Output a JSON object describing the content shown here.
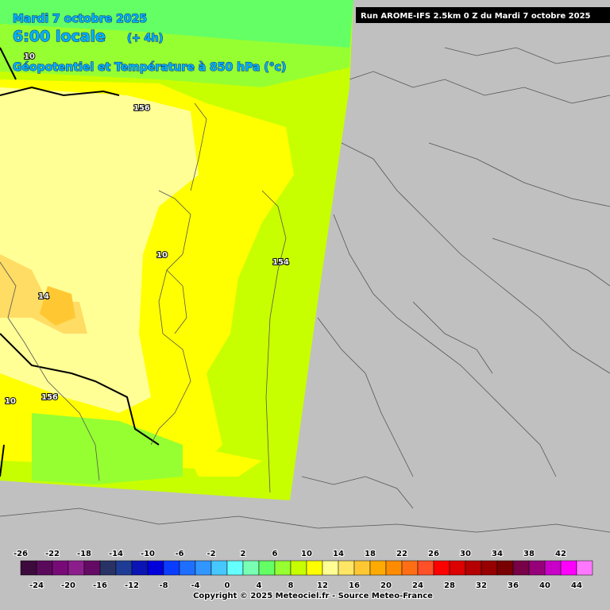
{
  "header": {
    "date": "Mardi 7 octobre 2025",
    "time": "6:00 locale",
    "offset": "(+ 4h)",
    "field": "Géopotentiel et Température à 850 hPa (°c)",
    "run": "Run AROME-IFS 2.5km 0 Z du Mardi 7 octobre 2025"
  },
  "map_labels": [
    "10",
    "156",
    "14",
    "10",
    "154",
    "10",
    "156"
  ],
  "legend": {
    "labels": [
      -26,
      -24,
      -22,
      -20,
      -18,
      -16,
      -14,
      -12,
      -10,
      -8,
      -6,
      -4,
      -2,
      0,
      2,
      4,
      6,
      8,
      10,
      12,
      14,
      16,
      18,
      20,
      22,
      24,
      26,
      28,
      30,
      32,
      34,
      36,
      38,
      40,
      42,
      44
    ],
    "colors": [
      "#3c0a3c",
      "#5a0a5a",
      "#780a78",
      "#8c1e8c",
      "#640a64",
      "#283264",
      "#1e3c96",
      "#0a14b4",
      "#0000dc",
      "#0a3cff",
      "#1e6eff",
      "#3296ff",
      "#46c8ff",
      "#64ffff",
      "#78ffb4",
      "#64ff64",
      "#96ff32",
      "#c8ff00",
      "#ffff00",
      "#ffff96",
      "#ffe664",
      "#ffc832",
      "#ffaa00",
      "#ff8c00",
      "#ff6e14",
      "#ff5028",
      "#ff0000",
      "#dc0000",
      "#b40000",
      "#960000",
      "#780000",
      "#780046",
      "#960078",
      "#c800c8",
      "#ff00ff",
      "#ff78ff"
    ]
  },
  "footer": {
    "copyright": "Copyright © 2025 Meteociel.fr - Source Meteo-France"
  }
}
